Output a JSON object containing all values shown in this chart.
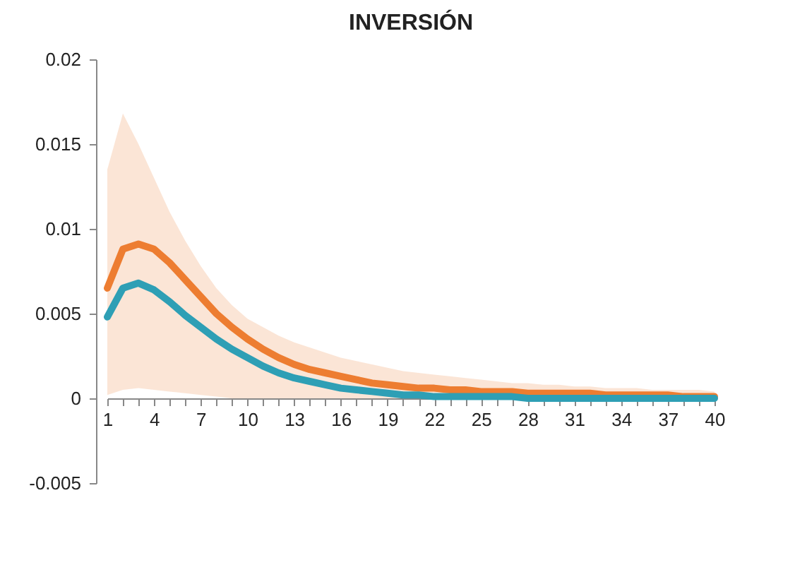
{
  "chart_data": {
    "type": "line",
    "title": "INVERSIÓN",
    "x": [
      1,
      2,
      3,
      4,
      5,
      6,
      7,
      8,
      9,
      10,
      11,
      12,
      13,
      14,
      15,
      16,
      17,
      18,
      19,
      20,
      21,
      22,
      23,
      24,
      25,
      26,
      27,
      28,
      29,
      30,
      31,
      32,
      33,
      34,
      35,
      36,
      37,
      38,
      39,
      40
    ],
    "xlim": [
      1,
      40
    ],
    "xticks": [
      1,
      {
        "value": 2,
        "label": null
      },
      {
        "value": 3,
        "label": null
      },
      4,
      {
        "value": 5,
        "label": null
      },
      {
        "value": 6,
        "label": null
      },
      7,
      {
        "value": 8,
        "label": null
      },
      {
        "value": 9,
        "label": null
      },
      10,
      {
        "value": 11,
        "label": null
      },
      {
        "value": 12,
        "label": null
      },
      13,
      {
        "value": 14,
        "label": null
      },
      {
        "value": 15,
        "label": null
      },
      16,
      {
        "value": 17,
        "label": null
      },
      {
        "value": 18,
        "label": null
      },
      19,
      {
        "value": 20,
        "label": null
      },
      {
        "value": 21,
        "label": null
      },
      22,
      {
        "value": 23,
        "label": null
      },
      {
        "value": 24,
        "label": null
      },
      25,
      {
        "value": 26,
        "label": null
      },
      {
        "value": 27,
        "label": null
      },
      28,
      {
        "value": 29,
        "label": null
      },
      {
        "value": 30,
        "label": null
      },
      31,
      {
        "value": 32,
        "label": null
      },
      {
        "value": 33,
        "label": null
      },
      34,
      {
        "value": 35,
        "label": null
      },
      {
        "value": 36,
        "label": null
      },
      37,
      {
        "value": 38,
        "label": null
      },
      {
        "value": 39,
        "label": null
      },
      40
    ],
    "ylim": [
      -0.005,
      0.02
    ],
    "yticks": [
      -0.005,
      0,
      0.005,
      0.01,
      0.015,
      0.02
    ],
    "grid": false,
    "series": [
      {
        "color": "#ed7d31",
        "values": [
          0.0065,
          0.0088,
          0.0091,
          0.0088,
          0.008,
          0.007,
          0.006,
          0.005,
          0.0042,
          0.0035,
          0.0029,
          0.0024,
          0.002,
          0.0017,
          0.0015,
          0.0013,
          0.0011,
          0.0009,
          0.0008,
          0.0007,
          0.0006,
          0.0006,
          0.0005,
          0.0005,
          0.0004,
          0.0004,
          0.0004,
          0.0003,
          0.0003,
          0.0003,
          0.0003,
          0.0003,
          0.0002,
          0.0002,
          0.0002,
          0.0002,
          0.0002,
          0.0001,
          0.0001,
          0.0001
        ],
        "lower": [
          0.0002,
          0.0005,
          0.0006,
          0.0005,
          0.0004,
          0.0003,
          0.0002,
          0.0001,
          0,
          0,
          0,
          0,
          0,
          0,
          0,
          0,
          0,
          0,
          0,
          0,
          0,
          0,
          0,
          0,
          0,
          0,
          0,
          0,
          0,
          0,
          0,
          0,
          0,
          0,
          0,
          0,
          0,
          0,
          0,
          0
        ],
        "upper": [
          0.0135,
          0.0168,
          0.015,
          0.013,
          0.011,
          0.0093,
          0.0078,
          0.0065,
          0.0055,
          0.0047,
          0.0042,
          0.0037,
          0.0033,
          0.003,
          0.0027,
          0.0024,
          0.0022,
          0.002,
          0.0018,
          0.0016,
          0.0015,
          0.0014,
          0.0013,
          0.0012,
          0.0011,
          0.001,
          0.0009,
          0.0009,
          0.0008,
          0.0008,
          0.0007,
          0.0007,
          0.0006,
          0.0006,
          0.0006,
          0.0005,
          0.0005,
          0.0005,
          0.0005,
          0.0004
        ]
      },
      {
        "color": "#2e9fb5",
        "values": [
          0.0048,
          0.0065,
          0.0068,
          0.0064,
          0.0057,
          0.0049,
          0.0042,
          0.0035,
          0.0029,
          0.0024,
          0.0019,
          0.0015,
          0.0012,
          0.001,
          0.0008,
          0.0006,
          0.0005,
          0.0004,
          0.0003,
          0.0002,
          0.0002,
          0.0001,
          0.0001,
          0.0001,
          0.0001,
          0.0001,
          0.0001,
          0,
          0,
          0,
          0,
          0,
          0,
          0,
          0,
          0,
          0,
          0,
          0,
          0
        ]
      }
    ]
  }
}
